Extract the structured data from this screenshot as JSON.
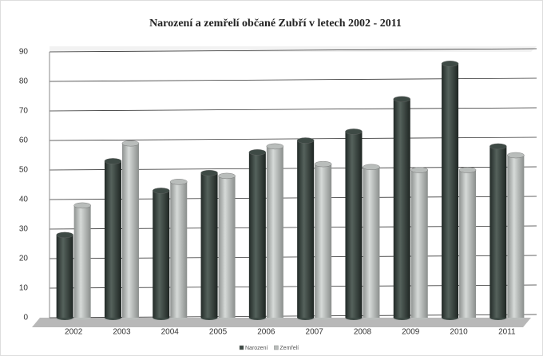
{
  "chart_data": {
    "type": "bar",
    "title": "Narození a zemřelí občané Zubří v letech 2002 - 2011",
    "categories": [
      "2002",
      "2003",
      "2004",
      "2005",
      "2006",
      "2007",
      "2008",
      "2009",
      "2010",
      "2011"
    ],
    "series": [
      {
        "name": "Narození",
        "color": "#3e4a45",
        "values": [
          28,
          53,
          43,
          49,
          56,
          60,
          63,
          74,
          86,
          58
        ]
      },
      {
        "name": "Zemřelí",
        "color": "#b9bdbb",
        "values": [
          38,
          59,
          46,
          48,
          58,
          52,
          51,
          50,
          50,
          55
        ]
      }
    ],
    "ylim": [
      0,
      90
    ],
    "yticks": [
      0,
      10,
      20,
      30,
      40,
      50,
      60,
      70,
      80,
      90
    ],
    "grid": true,
    "legend": "bottom"
  }
}
